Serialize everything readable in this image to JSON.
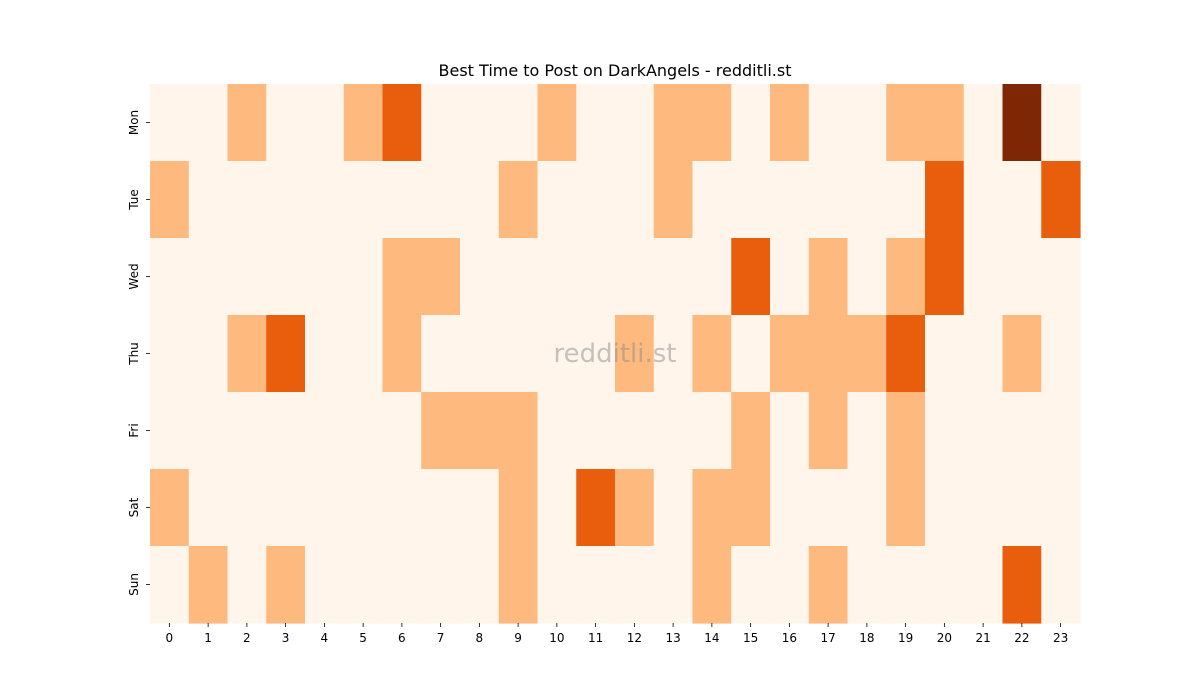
{
  "chart_data": {
    "type": "heatmap",
    "title": "Best Time to Post on DarkAngels - redditli.st",
    "watermark": "redditli.st",
    "xlabel": "",
    "ylabel": "",
    "x": [
      "0",
      "1",
      "2",
      "3",
      "4",
      "5",
      "6",
      "7",
      "8",
      "9",
      "10",
      "11",
      "12",
      "13",
      "14",
      "15",
      "16",
      "17",
      "18",
      "19",
      "20",
      "21",
      "22",
      "23"
    ],
    "y": [
      "Mon",
      "Tue",
      "Wed",
      "Thu",
      "Fri",
      "Sat",
      "Sun"
    ],
    "values": [
      [
        0,
        0,
        1,
        0,
        0,
        1,
        2,
        0,
        0,
        0,
        1,
        0,
        0,
        1,
        1,
        0,
        1,
        0,
        0,
        1,
        1,
        0,
        3,
        0
      ],
      [
        1,
        0,
        0,
        0,
        0,
        0,
        0,
        0,
        0,
        1,
        0,
        0,
        0,
        1,
        0,
        0,
        0,
        0,
        0,
        0,
        2,
        0,
        0,
        2
      ],
      [
        0,
        0,
        0,
        0,
        0,
        0,
        1,
        1,
        0,
        0,
        0,
        0,
        0,
        0,
        0,
        2,
        0,
        1,
        0,
        1,
        2,
        0,
        0,
        0
      ],
      [
        0,
        0,
        1,
        2,
        0,
        0,
        1,
        0,
        0,
        0,
        0,
        0,
        1,
        0,
        1,
        0,
        1,
        1,
        1,
        2,
        0,
        0,
        1,
        0
      ],
      [
        0,
        0,
        0,
        0,
        0,
        0,
        0,
        1,
        1,
        1,
        0,
        0,
        0,
        0,
        0,
        1,
        0,
        1,
        0,
        1,
        0,
        0,
        0,
        0
      ],
      [
        1,
        0,
        0,
        0,
        0,
        0,
        0,
        0,
        0,
        1,
        0,
        2,
        1,
        0,
        1,
        1,
        0,
        0,
        0,
        1,
        0,
        0,
        0,
        0
      ],
      [
        0,
        1,
        0,
        1,
        0,
        0,
        0,
        0,
        0,
        1,
        0,
        0,
        0,
        0,
        1,
        0,
        0,
        1,
        0,
        0,
        0,
        0,
        2,
        0
      ]
    ],
    "colormap": [
      "#fff5eb",
      "#fdb97e",
      "#e95e0d",
      "#7f2704"
    ],
    "colorbar": false
  }
}
